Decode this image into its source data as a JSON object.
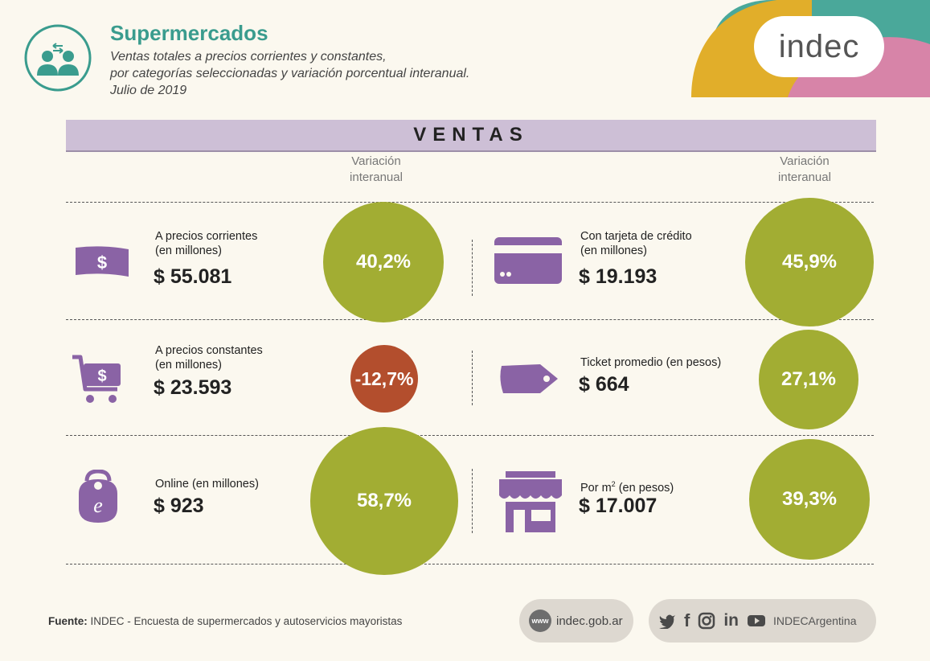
{
  "header": {
    "title": "Supermercados",
    "subtitle_lines": [
      "Ventas totales a precios corrientes y constantes,",
      "por categorías seleccionadas y variación porcentual interanual.",
      "Julio de 2019"
    ],
    "logo_text": "indec",
    "icon": "people-exchange-icon"
  },
  "banner": "VENTAS",
  "variation_header": [
    "Variación",
    "interanual"
  ],
  "items": [
    {
      "label_lines": [
        "A precios corrientes",
        "(en millones)"
      ],
      "value": "$ 55.081",
      "variation": "40,2%",
      "icon": "banknote-icon",
      "color": "#a2ad33"
    },
    {
      "label_lines": [
        "Con tarjeta de crédito",
        "(en millones)"
      ],
      "value": "$ 19.193",
      "variation": "45,9%",
      "icon": "credit-card-icon",
      "color": "#a2ad33"
    },
    {
      "label_lines": [
        "A precios constantes",
        "(en millones)"
      ],
      "value": "$ 23.593",
      "variation": "-12,7%",
      "icon": "shopping-cart-icon",
      "color": "#b34e2d"
    },
    {
      "label_lines": [
        "Ticket promedio (en pesos)"
      ],
      "value": "$ 664",
      "variation": "27,1%",
      "icon": "price-tag-icon",
      "color": "#a2ad33"
    },
    {
      "label_lines": [
        "Online (en millones)"
      ],
      "value": "$ 923",
      "variation": "58,7%",
      "icon": "online-bag-icon",
      "color": "#a2ad33"
    },
    {
      "label_pre": "Por m",
      "label_sup": "2",
      "label_post": " (en pesos)",
      "value": "$ 17.007",
      "variation": "39,3%",
      "icon": "store-icon",
      "color": "#a2ad33"
    }
  ],
  "footer": {
    "source_label": "Fuente:",
    "source_text": "INDEC - Encuesta de supermercados y autoservicios mayoristas",
    "www_badge": "www",
    "website": "indec.gob.ar",
    "social_handle": "INDECArgentina",
    "social_icons": [
      "twitter-icon",
      "facebook-icon",
      "instagram-icon",
      "linkedin-icon",
      "youtube-icon"
    ]
  },
  "colors": {
    "teal": "#3a9c8e",
    "purple": "#8a63a5",
    "olive": "#a2ad33",
    "rust": "#b34e2d",
    "banner": "#cdbfd6"
  }
}
